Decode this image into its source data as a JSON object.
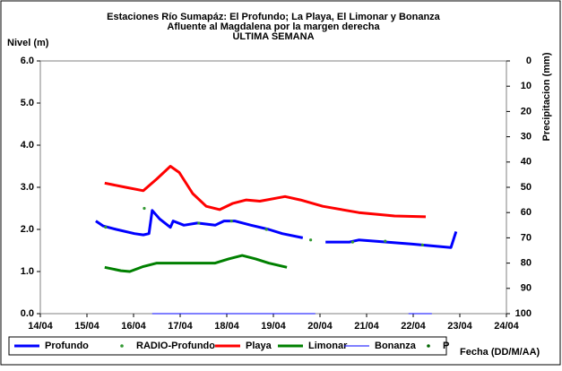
{
  "chart_data": {
    "type": "line",
    "title": [
      "Estaciones Río Sumapáz: El Profundo; La Playa, El Limonar y Bonanza",
      "Afluente al Magdalena por la margen derecha",
      "ULTIMA SEMANA"
    ],
    "y_label": "Nivel (m)",
    "y2_label": "Precipitacion (mm)",
    "x_label": "Fecha (DD/M/AA)",
    "xlim": [
      14,
      24
    ],
    "xticks": [
      {
        "value": 14,
        "label": "14/04"
      },
      {
        "value": 15,
        "label": "15/04"
      },
      {
        "value": 16,
        "label": "16/04"
      },
      {
        "value": 17,
        "label": "17/04"
      },
      {
        "value": 18,
        "label": "18/04"
      },
      {
        "value": 19,
        "label": "19/04"
      },
      {
        "value": 20,
        "label": "20/04"
      },
      {
        "value": 21,
        "label": "21/04"
      },
      {
        "value": 22,
        "label": "22/04"
      },
      {
        "value": 23,
        "label": "23/04"
      },
      {
        "value": 24,
        "label": "24/04"
      }
    ],
    "ylim": [
      0,
      6
    ],
    "yticks": [
      {
        "value": 0,
        "label": "0.0"
      },
      {
        "value": 1,
        "label": "1.0"
      },
      {
        "value": 2,
        "label": "2.0"
      },
      {
        "value": 3,
        "label": "3.0"
      },
      {
        "value": 4,
        "label": "4.0"
      },
      {
        "value": 5,
        "label": "5.0"
      },
      {
        "value": 6,
        "label": "6.0"
      }
    ],
    "y2lim": [
      100,
      0
    ],
    "y2ticks": [
      0,
      10,
      20,
      30,
      40,
      50,
      60,
      70,
      80,
      90,
      100
    ],
    "legend": "bottom",
    "series": [
      {
        "name": "Profundo",
        "color": "#0000ff",
        "style": "line",
        "width": 3,
        "x": [
          15.19,
          15.35,
          15.63,
          16.02,
          16.21,
          16.33,
          16.4,
          16.56,
          16.79,
          16.85,
          17.08,
          17.37,
          17.75,
          17.94,
          18.17,
          18.52,
          18.9,
          19.19,
          19.63,
          null,
          20.12,
          20.63,
          20.83,
          21.21,
          21.98,
          22.81,
          22.92
        ],
        "values": [
          2.2,
          2.08,
          2.0,
          1.9,
          1.87,
          1.9,
          2.45,
          2.25,
          2.05,
          2.2,
          2.1,
          2.15,
          2.1,
          2.2,
          2.2,
          2.1,
          2.0,
          1.9,
          1.8,
          null,
          1.7,
          1.7,
          1.75,
          1.72,
          1.65,
          1.57,
          1.95
        ]
      },
      {
        "name": "RADIO-Profundo",
        "color": "#339933",
        "style": "dot",
        "x": [
          15.4,
          16.23,
          17.4,
          18.1,
          18.85,
          19.8,
          20.7,
          21.4,
          22.2
        ],
        "values": [
          2.05,
          2.5,
          2.15,
          2.2,
          2.0,
          1.75,
          1.7,
          1.72,
          1.63
        ]
      },
      {
        "name": "Playa",
        "color": "#ff0000",
        "style": "line",
        "width": 3,
        "x": [
          15.38,
          15.83,
          16.21,
          16.5,
          16.79,
          16.98,
          17.27,
          17.56,
          17.85,
          18.13,
          18.42,
          18.71,
          19.25,
          19.58,
          20.06,
          20.83,
          21.6,
          22.27
        ],
        "values": [
          3.1,
          3.0,
          2.92,
          3.2,
          3.5,
          3.35,
          2.85,
          2.55,
          2.47,
          2.62,
          2.7,
          2.67,
          2.78,
          2.7,
          2.55,
          2.4,
          2.32,
          2.3
        ]
      },
      {
        "name": "Limonar",
        "color": "#008000",
        "style": "line",
        "width": 3,
        "x": [
          15.38,
          15.73,
          15.92,
          16.21,
          16.5,
          16.98,
          17.75,
          18.04,
          18.33,
          18.62,
          18.9,
          19.29
        ],
        "values": [
          1.1,
          1.02,
          1.0,
          1.12,
          1.2,
          1.2,
          1.2,
          1.3,
          1.38,
          1.3,
          1.2,
          1.1
        ]
      },
      {
        "name": "Bonanza",
        "color": "#0000ff",
        "style": "line",
        "width": 1,
        "x": [
          16.4,
          19.9,
          null,
          21.9,
          22.4
        ],
        "values": [
          0,
          0,
          null,
          0,
          0
        ]
      },
      {
        "name": "P",
        "color": "#006600",
        "style": "dot",
        "x": [],
        "values": []
      }
    ]
  }
}
